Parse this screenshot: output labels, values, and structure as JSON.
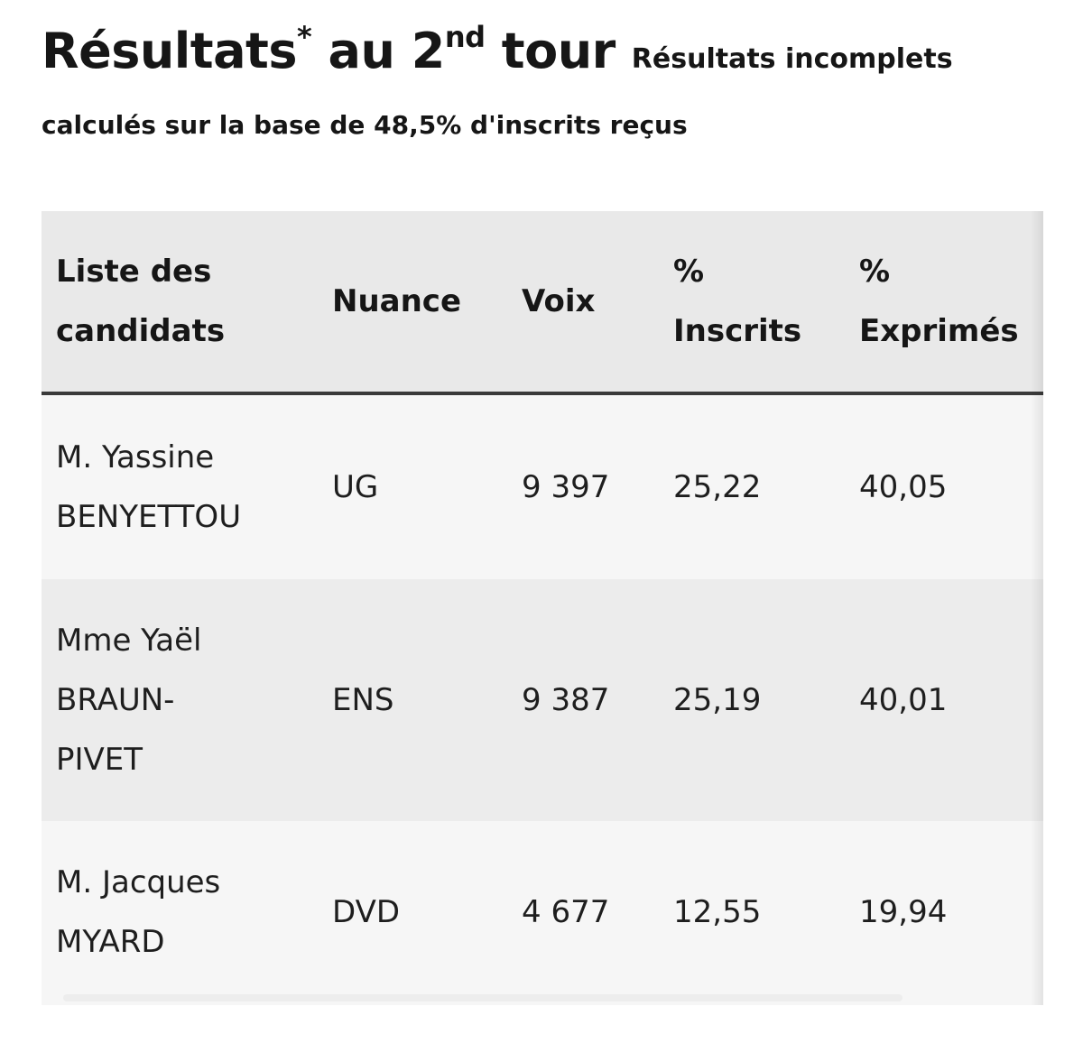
{
  "header": {
    "title": "Résultats",
    "title_sup": "*",
    "title_mid": " au 2",
    "title_sup2": "nd",
    "title_end": " tour",
    "title_suffix": "Résultats incomplets",
    "subtitle": "calculés sur la base de 48,5% d'inscrits reçus"
  },
  "table": {
    "columns": [
      {
        "line1": "Liste des",
        "line2": "candidats"
      },
      {
        "line1": "Nuance",
        "line2": ""
      },
      {
        "line1": "Voix",
        "line2": ""
      },
      {
        "line1": "%",
        "line2": "Inscrits"
      },
      {
        "line1": "%",
        "line2": "Exprimés"
      }
    ],
    "rows": [
      {
        "name_lines": [
          "M. Yassine",
          "BENYETTOU"
        ],
        "nuance": "UG",
        "voix": "9 397",
        "inscrits": "25,22",
        "exprimes": "40,05"
      },
      {
        "name_lines": [
          "Mme Yaël",
          "BRAUN-",
          "PIVET"
        ],
        "nuance": "ENS",
        "voix": "9 387",
        "inscrits": "25,19",
        "exprimes": "40,01"
      },
      {
        "name_lines": [
          "M. Jacques",
          "MYARD"
        ],
        "nuance": "DVD",
        "voix": "4 677",
        "inscrits": "12,55",
        "exprimes": "19,94"
      }
    ]
  }
}
